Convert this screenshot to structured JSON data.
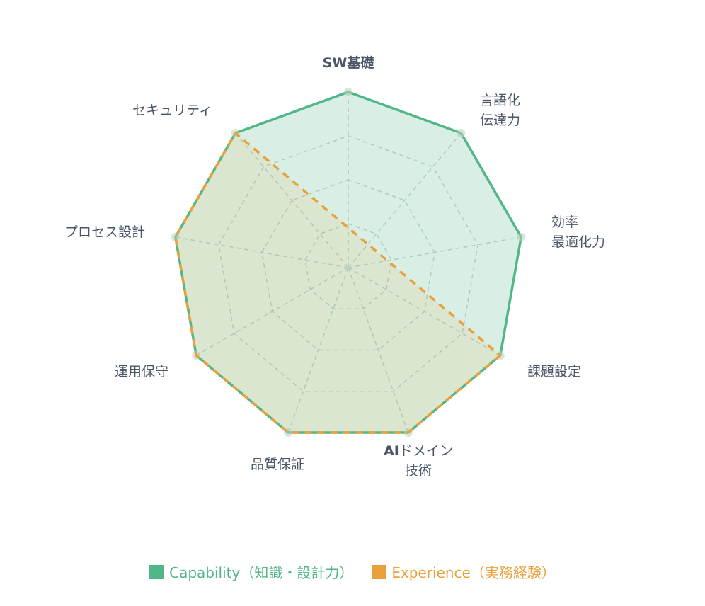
{
  "chart_data": {
    "type": "radar",
    "title": "",
    "categories": [
      "SW基礎",
      "言語化 伝達力",
      "効率 最適化力",
      "課題設定",
      "AIドメイン 技術",
      "品質保証",
      "運用保守",
      "プロセス設計",
      "セキュリティ"
    ],
    "category_lines": [
      [
        "SW基礎"
      ],
      [
        "言語化",
        "伝達力"
      ],
      [
        "効率",
        "最適化力"
      ],
      [
        "課題設定"
      ],
      [
        "AIドメイン",
        "技術"
      ],
      [
        "品質保証"
      ],
      [
        "運用保守"
      ],
      [
        "プロセス設計"
      ],
      [
        "セキュリティ"
      ]
    ],
    "series": [
      {
        "name": "Capability（知識・設計力）",
        "values": [
          4,
          4,
          4,
          4,
          4,
          4,
          4,
          4,
          4
        ],
        "color": "#52b788",
        "fill": "rgba(82,183,136,0.22)",
        "line_style": "solid"
      },
      {
        "name": "Experience（実務経験）",
        "values": [
          null,
          null,
          null,
          4,
          4,
          4,
          4,
          4,
          4
        ],
        "color": "#e9a23b",
        "fill": "rgba(233,162,59,0.12)",
        "line_style": "dashed"
      }
    ],
    "rlim": [
      0,
      4
    ],
    "grid_levels": 4,
    "grid": true,
    "legend_position": "bottom"
  },
  "legend": {
    "items": [
      {
        "label": "Capability（知識・設計力）",
        "color": "#52b788"
      },
      {
        "label": "Experience（実務経験）",
        "color": "#e9a23b"
      }
    ]
  }
}
